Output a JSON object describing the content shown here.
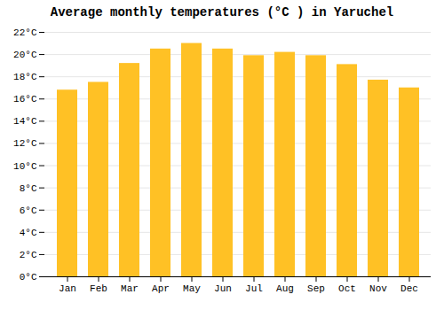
{
  "chart_data": {
    "type": "bar",
    "title": "Average monthly temperatures (°C ) in Yaruchel",
    "categories": [
      "Jan",
      "Feb",
      "Mar",
      "Apr",
      "May",
      "Jun",
      "Jul",
      "Aug",
      "Sep",
      "Oct",
      "Nov",
      "Dec"
    ],
    "values": [
      16.8,
      17.5,
      19.2,
      20.5,
      21.0,
      20.5,
      19.9,
      20.2,
      19.9,
      19.1,
      17.7,
      17.0
    ],
    "color": "#FFC125",
    "ylim": [
      0,
      22
    ],
    "yticks": [
      {
        "value": 0,
        "label": "0°C"
      },
      {
        "value": 2,
        "label": "2°C"
      },
      {
        "value": 4,
        "label": "4°C"
      },
      {
        "value": 6,
        "label": "6°C"
      },
      {
        "value": 8,
        "label": "8°C"
      },
      {
        "value": 10,
        "label": "10°C"
      },
      {
        "value": 12,
        "label": "12°C"
      },
      {
        "value": 14,
        "label": "14°C"
      },
      {
        "value": 16,
        "label": "16°C"
      },
      {
        "value": 18,
        "label": "18°C"
      },
      {
        "value": 20,
        "label": "20°C"
      },
      {
        "value": 22,
        "label": "22°C"
      }
    ],
    "grid": true
  }
}
